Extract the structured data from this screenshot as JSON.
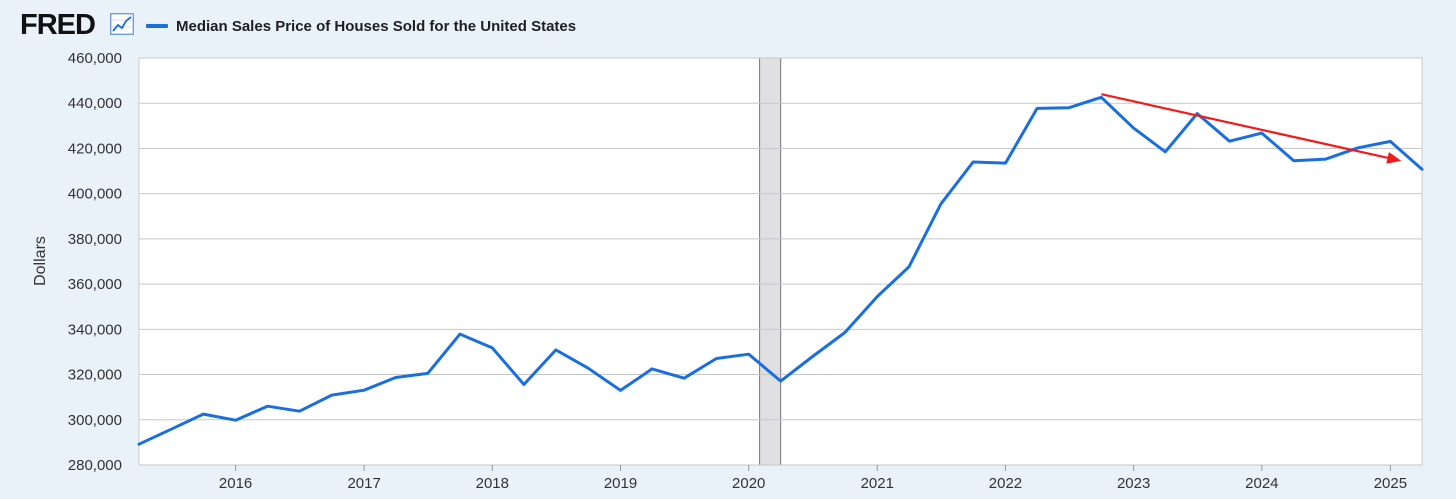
{
  "header": {
    "logo_text": "FRED",
    "logo_icon": "line-chart-icon"
  },
  "colors": {
    "series": "#1a6fdf",
    "trend_arrow": "#ee1c1c",
    "recession": "#e0e0e3",
    "grid": "#c8c8c8",
    "background": "#e9f1f9",
    "plot": "#ffffff"
  },
  "chart_data": {
    "type": "line",
    "title": "",
    "xlabel": "",
    "ylabel": "Dollars",
    "grid": true,
    "legend_position": "top-left",
    "ylim": [
      280000,
      460000
    ],
    "xlim": [
      "2015-04-01",
      "2025-04-01"
    ],
    "yticks": [
      280000,
      300000,
      320000,
      340000,
      360000,
      380000,
      400000,
      420000,
      440000,
      460000
    ],
    "ytick_labels": [
      "280,000",
      "300,000",
      "320,000",
      "340,000",
      "360,000",
      "380,000",
      "400,000",
      "420,000",
      "440,000",
      "460,000"
    ],
    "xticks": [
      "2016",
      "2017",
      "2018",
      "2019",
      "2020",
      "2021",
      "2022",
      "2023",
      "2024",
      "2025"
    ],
    "series": [
      {
        "name": "Median Sales Price of Houses Sold for the United States",
        "x": [
          "2015-04-01",
          "2015-07-01",
          "2015-10-01",
          "2016-01-01",
          "2016-04-01",
          "2016-07-01",
          "2016-10-01",
          "2017-01-01",
          "2017-04-01",
          "2017-07-01",
          "2017-10-01",
          "2018-01-01",
          "2018-04-01",
          "2018-07-01",
          "2018-10-01",
          "2019-01-01",
          "2019-04-01",
          "2019-07-01",
          "2019-10-01",
          "2020-01-01",
          "2020-04-01",
          "2020-07-01",
          "2020-10-01",
          "2021-01-01",
          "2021-04-01",
          "2021-07-01",
          "2021-10-01",
          "2022-01-01",
          "2022-04-01",
          "2022-07-01",
          "2022-10-01",
          "2023-01-01",
          "2023-04-01",
          "2023-07-01",
          "2023-10-01",
          "2024-01-01",
          "2024-04-01",
          "2024-07-01",
          "2024-10-01",
          "2025-01-01",
          "2025-04-01"
        ],
        "values": [
          289200,
          295800,
          302500,
          299800,
          306000,
          303800,
          310900,
          313100,
          318700,
          320500,
          337900,
          331800,
          315600,
          330900,
          322800,
          313000,
          322500,
          318400,
          327100,
          329000,
          317100,
          328000,
          338600,
          354500,
          367600,
          395400,
          414000,
          413500,
          437700,
          438000,
          442600,
          429000,
          418500,
          435400,
          423200,
          426800,
          414600,
          415300,
          420300,
          423100,
          410800
        ]
      }
    ],
    "recessions": [
      {
        "start": "2020-02-01",
        "end": "2020-04-01"
      }
    ],
    "annotations": [
      {
        "type": "trend-arrow",
        "from": {
          "x": "2022-10-01",
          "y": 444000
        },
        "to": {
          "x": "2025-02-01",
          "y": 414500
        }
      }
    ]
  }
}
